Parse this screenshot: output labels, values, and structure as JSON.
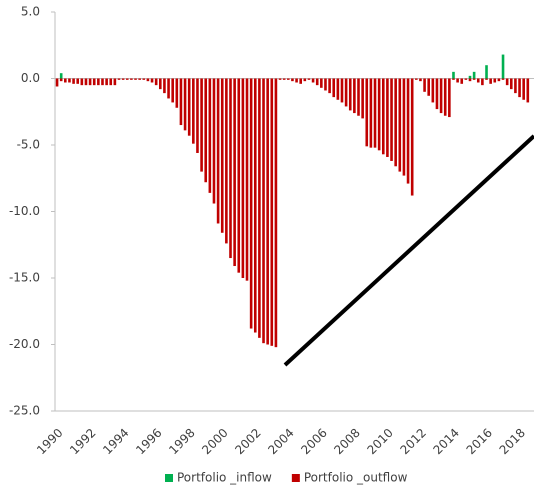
{
  "chart_data": {
    "type": "bar",
    "categories": [
      "1990",
      null,
      null,
      null,
      null,
      null,
      null,
      null,
      "1992",
      null,
      null,
      null,
      null,
      null,
      null,
      null,
      "1994",
      null,
      null,
      null,
      null,
      null,
      null,
      null,
      "1996",
      null,
      null,
      null,
      null,
      null,
      null,
      null,
      "1998",
      null,
      null,
      null,
      null,
      null,
      null,
      null,
      "2000",
      null,
      null,
      null,
      null,
      null,
      null,
      null,
      "2002",
      null,
      null,
      null,
      null,
      null,
      null,
      null,
      "2004",
      null,
      null,
      null,
      null,
      null,
      null,
      null,
      "2006",
      null,
      null,
      null,
      null,
      null,
      null,
      null,
      "2008",
      null,
      null,
      null,
      null,
      null,
      null,
      null,
      "2010",
      null,
      null,
      null,
      null,
      null,
      null,
      null,
      "2012",
      null,
      null,
      null,
      null,
      null,
      null,
      null,
      "2014",
      null,
      null,
      null,
      null,
      null,
      null,
      null,
      "2016",
      null,
      null,
      null,
      null,
      null,
      null,
      null,
      "2018",
      null,
      null,
      null
    ],
    "series": [
      {
        "name": "Portfolio _inflow",
        "color": "#00b050",
        "values": [
          null,
          0.4,
          null,
          null,
          null,
          null,
          null,
          null,
          null,
          null,
          null,
          null,
          null,
          null,
          null,
          null,
          null,
          null,
          null,
          null,
          null,
          null,
          null,
          null,
          null,
          null,
          null,
          null,
          null,
          null,
          null,
          null,
          null,
          null,
          null,
          null,
          null,
          null,
          null,
          null,
          null,
          null,
          null,
          null,
          null,
          null,
          null,
          null,
          null,
          null,
          null,
          null,
          null,
          null,
          null,
          null,
          null,
          null,
          null,
          null,
          null,
          null,
          null,
          null,
          null,
          null,
          null,
          null,
          null,
          null,
          null,
          null,
          null,
          null,
          null,
          null,
          null,
          null,
          null,
          null,
          null,
          null,
          null,
          null,
          null,
          null,
          null,
          null,
          null,
          null,
          null,
          null,
          null,
          null,
          null,
          null,
          0.5,
          null,
          null,
          null,
          0.2,
          0.5,
          null,
          null,
          1.0,
          null,
          null,
          null,
          1.8,
          null,
          null,
          null,
          null,
          null,
          null,
          null
        ]
      },
      {
        "name": "Portfolio _outflow",
        "color": "#c00000",
        "values": [
          -0.6,
          -0.2,
          -0.3,
          -0.3,
          -0.4,
          -0.4,
          -0.5,
          -0.5,
          -0.5,
          -0.5,
          -0.5,
          -0.5,
          -0.5,
          -0.5,
          -0.5,
          -0.1,
          -0.1,
          -0.1,
          -0.1,
          -0.1,
          -0.1,
          -0.1,
          -0.2,
          -0.3,
          -0.5,
          -0.8,
          -1.1,
          -1.5,
          -1.8,
          -2.2,
          -3.5,
          -3.9,
          -4.3,
          -4.9,
          -5.6,
          -7.0,
          -7.8,
          -8.6,
          -9.4,
          -10.9,
          -11.6,
          -12.4,
          -13.5,
          -14.1,
          -14.6,
          -15.0,
          -15.2,
          -18.8,
          -19.1,
          -19.5,
          -19.9,
          -20.0,
          -20.1,
          -20.2,
          -0.1,
          -0.1,
          -0.1,
          -0.2,
          -0.3,
          -0.4,
          -0.2,
          -0.1,
          -0.3,
          -0.5,
          -0.7,
          -0.9,
          -1.1,
          -1.4,
          -1.6,
          -1.8,
          -2.1,
          -2.4,
          -2.6,
          -2.8,
          -3.0,
          -5.1,
          -5.2,
          -5.2,
          -5.4,
          -5.7,
          -5.9,
          -6.2,
          -6.6,
          -7.0,
          -7.3,
          -7.9,
          -8.8,
          -0.1,
          -0.2,
          -1.0,
          -1.3,
          -1.8,
          -2.3,
          -2.6,
          -2.8,
          -2.9,
          -0.1,
          -0.3,
          -0.4,
          -0.1,
          -0.2,
          -0.1,
          -0.3,
          -0.5,
          -0.1,
          -0.4,
          -0.3,
          -0.2,
          -0.1,
          -0.5,
          -0.8,
          -1.1,
          -1.4,
          -1.6,
          -1.8,
          null
        ]
      }
    ],
    "ylim": [
      -25,
      5
    ],
    "yticks": [
      {
        "value": 5,
        "label": "5.0"
      },
      {
        "value": 0,
        "label": "0.0"
      },
      {
        "value": -5,
        "label": "-5.0"
      },
      {
        "value": -10,
        "label": "-10.0"
      },
      {
        "value": -15,
        "label": "-15.0"
      },
      {
        "value": -20,
        "label": "-20.0"
      },
      {
        "value": -25,
        "label": "-25.0"
      }
    ],
    "grid": false,
    "legend": "bottom"
  }
}
